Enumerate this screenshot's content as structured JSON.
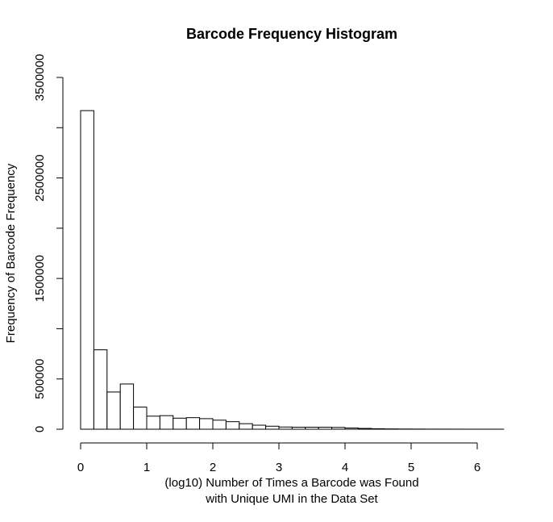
{
  "chart_data": {
    "type": "bar",
    "title": "Barcode Frequency Histogram",
    "xlabel_lines": [
      "(log10) Number of Times a Barcode was Found",
      "with Unique UMI in the Data Set"
    ],
    "ylabel": "Frequency of Barcode Frequency",
    "bin_width": 0.2,
    "bin_start": 0,
    "values": [
      3170000,
      790000,
      370000,
      450000,
      220000,
      130000,
      135000,
      110000,
      115000,
      105000,
      90000,
      75000,
      55000,
      40000,
      30000,
      22000,
      20000,
      20000,
      20000,
      18000,
      12000,
      8000,
      5000,
      3000,
      2000,
      1500,
      1000,
      800,
      600,
      500,
      400,
      300
    ],
    "xlim": [
      0,
      6.4
    ],
    "ylim": [
      0,
      3500000
    ],
    "x_ticks": [
      0,
      1,
      2,
      3,
      4,
      5,
      6
    ],
    "y_ticks": [
      0,
      500000,
      1500000,
      2500000,
      3500000
    ],
    "y_minor_ticks": [
      1000000,
      2000000,
      3000000
    ],
    "grid": false,
    "legend": "none",
    "bar_fill": "#ffffff",
    "bar_stroke": "#000000"
  }
}
